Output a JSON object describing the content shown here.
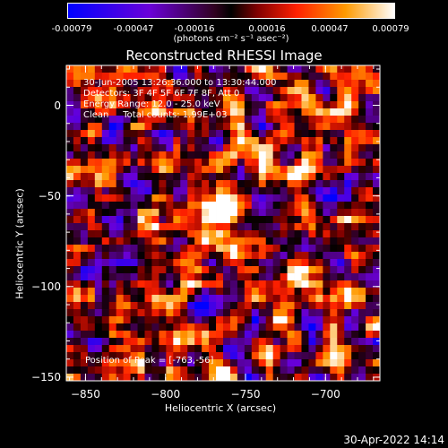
{
  "colorbar": {
    "ticks": [
      "-0.00079",
      "-0.00047",
      "-0.00016",
      "0.00016",
      "0.00047",
      "0.00079"
    ],
    "units": "(photons cm⁻² s⁻¹ asec⁻²)",
    "min": -0.00079,
    "max": 0.00079
  },
  "chart_data": {
    "type": "heatmap",
    "title": "Reconstructed RHESSI Image",
    "xlabel": "Heliocentric X (arcsec)",
    "ylabel": "Heliocentric Y (arcsec)",
    "xlim": [
      -862,
      -666
    ],
    "ylim": [
      -152,
      22
    ],
    "xticks": [
      -850,
      -800,
      -750,
      -700
    ],
    "yticks": [
      0,
      -50,
      -100,
      -150
    ],
    "xtick_labels": [
      "−850",
      "−800",
      "−750",
      "−700"
    ],
    "ytick_labels": [
      "0",
      "−50",
      "−100",
      "−150"
    ],
    "peak": [
      -763,
      -56
    ],
    "vmin": -0.00079,
    "vmax": 0.00079
  },
  "info": {
    "line1": "30-Jun-2005 13:26:36.000 to 13:30:44.000",
    "line2": "Detectors: 3F 4F 5F 6F 7F 8F, Att 0",
    "line3": "Energy Range: 12.0 - 25.0 keV",
    "line4": "Clean     Total counts: 1.99E+03",
    "peak_text": "Position of Peak = [-763,-56]"
  },
  "footer": {
    "timestamp": "30-Apr-2022 14:14"
  }
}
